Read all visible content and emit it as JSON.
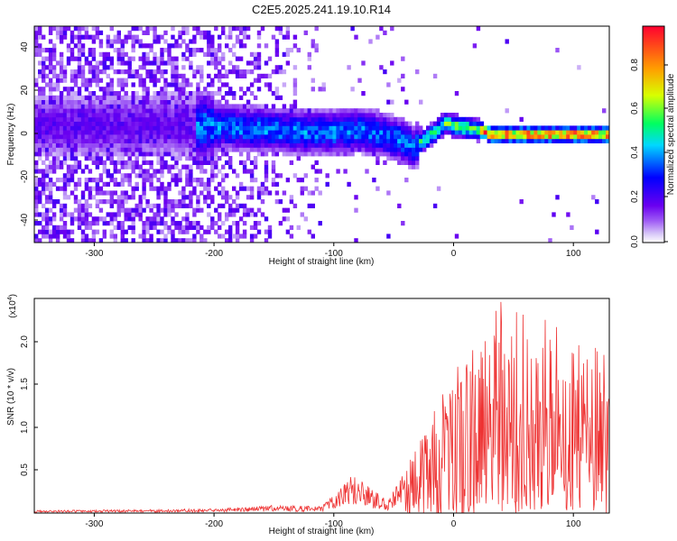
{
  "title": "C2E5.2025.241.19.10.R14",
  "spectrogram": {
    "xlabel": "Height of straight line (km)",
    "ylabel": "Frequency (Hz)",
    "xlim": [
      -350,
      130
    ],
    "ylim": [
      -50,
      50
    ],
    "xticks": [
      "-300",
      "-200",
      "-100",
      "0",
      "100"
    ],
    "yticks": [
      "40",
      "20",
      "0",
      "-20",
      "-40"
    ],
    "colorbar": {
      "label": "Normalized spectral amplitude",
      "ticks": [
        "0.8",
        "0.6",
        "0.4",
        "0.2",
        "0.0"
      ],
      "range": [
        0,
        0.95
      ]
    }
  },
  "chart_data": [
    {
      "type": "heatmap",
      "title": "C2E5.2025.241.19.10.R14",
      "xlabel": "Height of straight line (km)",
      "ylabel": "Frequency (Hz)",
      "xlim": [
        -350,
        130
      ],
      "ylim": [
        -50,
        50
      ],
      "colorscale": "rainbow",
      "colorbar_label": "Normalized spectral amplitude",
      "ridge": {
        "x": [
          -210,
          -180,
          -150,
          -120,
          -100,
          -80,
          -60,
          -45,
          -35,
          -25,
          -15,
          -8,
          0,
          10,
          20,
          30,
          40,
          60,
          80,
          100,
          130
        ],
        "y": [
          4,
          3,
          2,
          1,
          1,
          2,
          0,
          -3,
          -6,
          -2,
          2,
          5,
          4,
          3,
          2,
          0,
          0,
          0,
          0,
          0,
          0
        ]
      },
      "noise_region_x": [
        -350,
        -110
      ]
    },
    {
      "type": "line",
      "xlabel": "Height of straight line (km)",
      "ylabel": "SNR (10 * v/v)",
      "ylabel_scale": "(x10^4)",
      "xlim": [
        -350,
        130
      ],
      "ylim": [
        0,
        2.5
      ],
      "color": "#ee3333",
      "envelope": {
        "x": [
          -350,
          -200,
          -150,
          -110,
          -95,
          -85,
          -75,
          -65,
          -55,
          -45,
          -35,
          -25,
          -15,
          0,
          20,
          40,
          60,
          80,
          100,
          130
        ],
        "y": [
          0.03,
          0.05,
          0.09,
          0.08,
          0.3,
          0.45,
          0.35,
          0.25,
          0.15,
          0.4,
          0.8,
          1.1,
          1.3,
          1.6,
          2.2,
          2.5,
          2.3,
          2.3,
          2.0,
          1.9
        ]
      }
    }
  ],
  "snr": {
    "xlabel": "Height of straight line (km)",
    "ylabel": "SNR (10 * v/v)",
    "scale_base": "(x10",
    "scale_exp": "4",
    "scale_close": ")",
    "xticks": [
      "-300",
      "-200",
      "-100",
      "0",
      "100"
    ],
    "yticks": [
      "2.0",
      "1.5",
      "1.0",
      "0.5"
    ]
  }
}
